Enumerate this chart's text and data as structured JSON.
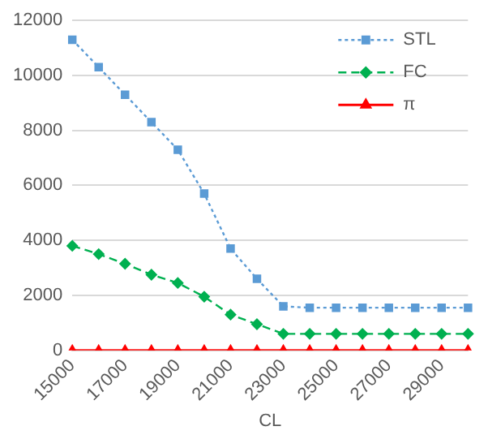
{
  "chart_data": {
    "type": "line",
    "xlabel": "CL",
    "categories": [
      "15000",
      null,
      "17000",
      null,
      "19000",
      null,
      "21000",
      null,
      "23000",
      null,
      "25000",
      null,
      "27000",
      null,
      "29000",
      null
    ],
    "series": [
      {
        "name": "STL",
        "color": "#5b9bd5",
        "marker": "square",
        "line_style": "dotted",
        "values": [
          11300,
          10300,
          9300,
          8300,
          7300,
          5700,
          3700,
          2600,
          1600,
          1550,
          1550,
          1550,
          1550,
          1550,
          1550,
          1550
        ]
      },
      {
        "name": "FC",
        "color": "#00b050",
        "marker": "diamond",
        "line_style": "dashed",
        "values": [
          3800,
          3500,
          3150,
          2750,
          2450,
          1950,
          1300,
          950,
          600,
          600,
          600,
          600,
          600,
          600,
          600,
          600
        ]
      },
      {
        "name": "π",
        "color": "#ff0000",
        "marker": "triangle",
        "line_style": "solid",
        "values": [
          0,
          0,
          0,
          0,
          0,
          0,
          0,
          0,
          0,
          0,
          0,
          0,
          0,
          0,
          0,
          0
        ]
      }
    ],
    "ylim": [
      0,
      12000
    ],
    "yticks": [
      0,
      2000,
      4000,
      6000,
      8000,
      10000,
      12000
    ],
    "grid": "y",
    "legend": "top right"
  }
}
